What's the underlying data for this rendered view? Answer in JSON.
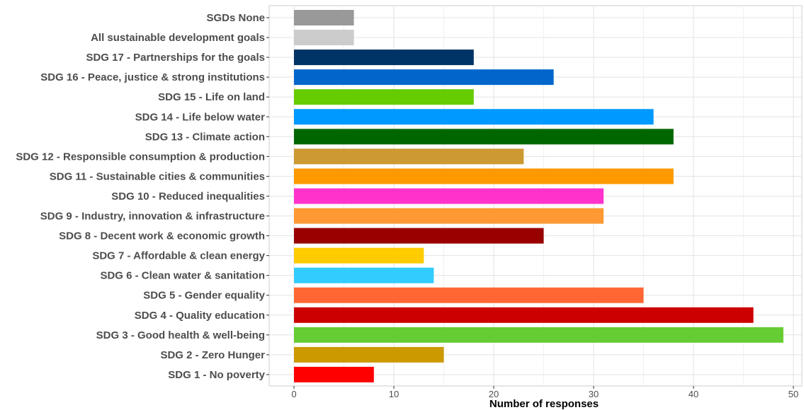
{
  "chart_data": {
    "type": "bar",
    "orientation": "horizontal",
    "title": "",
    "xlabel": "Number of responses",
    "ylabel": "",
    "xlim": [
      0,
      50
    ],
    "xticks": [
      0,
      10,
      20,
      30,
      40,
      50
    ],
    "grid": true,
    "legend": "none",
    "categories": [
      "SGDs None",
      "All sustainable development goals",
      "SDG 17 - Partnerships for the goals",
      "SDG 16 - Peace, justice & strong institutions",
      "SDG 15 - Life on land",
      "SDG 14 - Life below water",
      "SDG 13 - Climate action",
      "SDG 12 - Responsible consumption & production",
      "SDG 11 - Sustainable cities & communities",
      "SDG 10 - Reduced inequalities",
      "SDG 9 - Industry, innovation & infrastructure",
      "SDG 8 - Decent work & economic growth",
      "SDG 7 - Affordable & clean energy",
      "SDG 6 - Clean water & sanitation",
      "SDG 5 - Gender equality",
      "SDG 4 - Quality education",
      "SDG 3 - Good health & well-being",
      "SDG 2 - Zero Hunger",
      "SDG 1 - No poverty"
    ],
    "values": [
      6,
      6,
      18,
      26,
      18,
      36,
      38,
      23,
      38,
      31,
      31,
      25,
      13,
      14,
      35,
      46,
      49,
      15,
      8
    ],
    "colors": [
      "#999999",
      "#cccccc",
      "#003366",
      "#0066cc",
      "#66cc00",
      "#0099ff",
      "#006600",
      "#cc9933",
      "#ff9900",
      "#ff33cc",
      "#ff9933",
      "#990000",
      "#ffcc00",
      "#33ccff",
      "#ff6633",
      "#cc0000",
      "#66cc33",
      "#cc9900",
      "#ff0000"
    ]
  }
}
